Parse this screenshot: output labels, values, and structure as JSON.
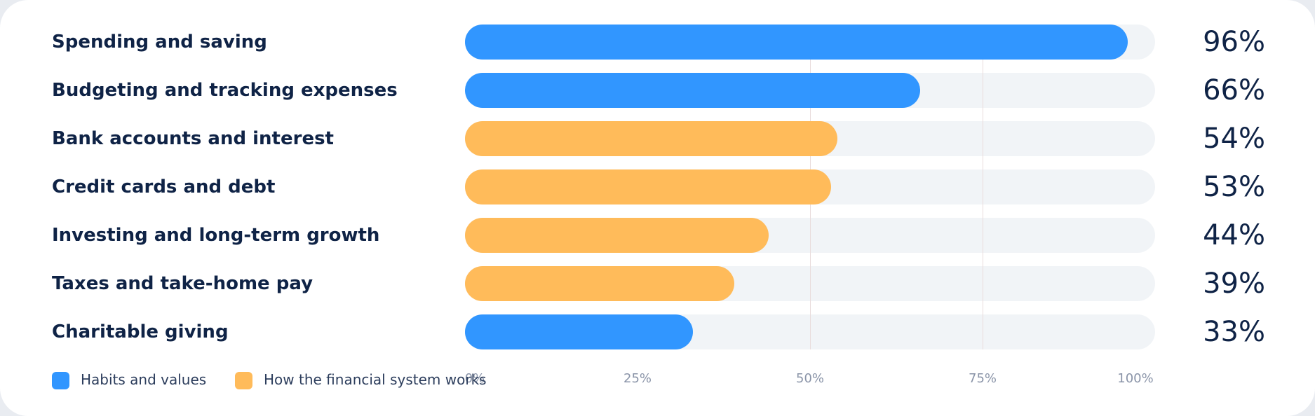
{
  "colors": {
    "habits": "#3196ff",
    "system": "#ffbb5a",
    "track": "#f1f4f7"
  },
  "legend": {
    "habits_label": "Habits and values",
    "system_label": "How the financial system works"
  },
  "chart_data": {
    "type": "bar",
    "orientation": "horizontal",
    "categories": [
      "Spending and saving",
      "Budgeting and tracking expenses",
      "Bank accounts and interest",
      "Credit cards and debt",
      "Investing and long-term growth",
      "Taxes and take-home pay",
      "Charitable giving"
    ],
    "values": [
      96,
      66,
      54,
      53,
      44,
      39,
      33
    ],
    "value_labels": [
      "96%",
      "66%",
      "54%",
      "53%",
      "44%",
      "39%",
      "33%"
    ],
    "groups": [
      "habits",
      "habits",
      "system",
      "system",
      "system",
      "system",
      "habits"
    ],
    "x_ticks": [
      "0%",
      "25%",
      "50%",
      "75%",
      "100%"
    ],
    "xlim": [
      0,
      100
    ],
    "legend_position": "bottom-left",
    "grid": true
  }
}
